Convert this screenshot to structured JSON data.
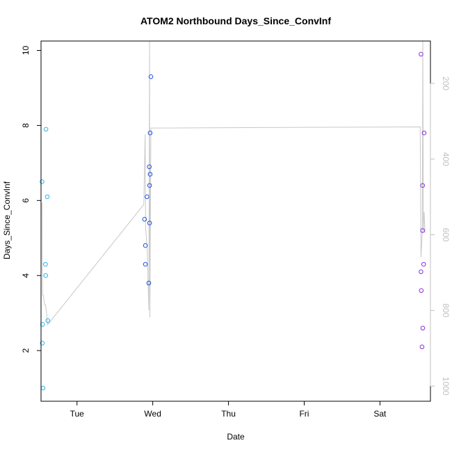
{
  "chart_data": {
    "type": "scatter",
    "title": "ATOM2 Northbound Days_Since_ConvInf",
    "xlabel": "Date",
    "ylabel": "Days_Since_ConvInf",
    "xlim": [
      "2000-01-03T12:36",
      "2000-01-08T16:00"
    ],
    "ylim": [
      0.65,
      10.25
    ],
    "y_ticks": [
      2,
      4,
      6,
      8,
      10
    ],
    "x_ticks": [
      {
        "label": "Tue",
        "value": "2000-01-04T00:00"
      },
      {
        "label": "Wed",
        "value": "2000-01-05T00:00"
      },
      {
        "label": "Thu",
        "value": "2000-01-06T00:00"
      },
      {
        "label": "Fri",
        "value": "2000-01-07T00:00"
      },
      {
        "label": "Sat",
        "value": "2000-01-08T00:00"
      }
    ],
    "y2_ticks": [
      200,
      400,
      600,
      800,
      1000
    ],
    "y2lim": [
      1040,
      88
    ],
    "y2_reversed": true,
    "grid": false,
    "series": [
      {
        "color": "#29b5e8",
        "points": [
          {
            "x": "2000-01-03T12:55",
            "y": 6.5
          },
          {
            "x": "2000-01-03T13:00",
            "y": 2.2
          },
          {
            "x": "2000-01-03T13:05",
            "y": 2.7
          },
          {
            "x": "2000-01-03T13:15",
            "y": 1.0
          },
          {
            "x": "2000-01-03T14:00",
            "y": 4.3
          },
          {
            "x": "2000-01-03T14:05",
            "y": 4.0
          },
          {
            "x": "2000-01-03T14:10",
            "y": 7.9
          },
          {
            "x": "2000-01-03T14:35",
            "y": 6.1
          },
          {
            "x": "2000-01-03T14:45",
            "y": 2.8
          }
        ]
      },
      {
        "color": "#2250e0",
        "points": [
          {
            "x": "2000-01-04T21:25",
            "y": 5.5
          },
          {
            "x": "2000-01-04T21:40",
            "y": 4.8
          },
          {
            "x": "2000-01-04T21:40",
            "y": 4.3
          },
          {
            "x": "2000-01-04T22:10",
            "y": 6.1
          },
          {
            "x": "2000-01-04T22:45",
            "y": 3.8
          },
          {
            "x": "2000-01-04T22:55",
            "y": 6.9
          },
          {
            "x": "2000-01-04T23:00",
            "y": 6.4
          },
          {
            "x": "2000-01-04T23:00",
            "y": 5.4
          },
          {
            "x": "2000-01-04T23:10",
            "y": 7.8
          },
          {
            "x": "2000-01-04T23:10",
            "y": 6.7
          },
          {
            "x": "2000-01-04T23:25",
            "y": 9.3
          }
        ]
      },
      {
        "color": "#8a2be2",
        "points": [
          {
            "x": "2000-01-08T13:00",
            "y": 9.9
          },
          {
            "x": "2000-01-08T13:00",
            "y": 4.1
          },
          {
            "x": "2000-01-08T13:05",
            "y": 3.6
          },
          {
            "x": "2000-01-08T13:20",
            "y": 2.1
          },
          {
            "x": "2000-01-08T13:30",
            "y": 6.4
          },
          {
            "x": "2000-01-08T13:30",
            "y": 5.2
          },
          {
            "x": "2000-01-08T13:35",
            "y": 2.6
          },
          {
            "x": "2000-01-08T13:50",
            "y": 4.3
          },
          {
            "x": "2000-01-08T14:00",
            "y": 7.8
          }
        ]
      }
    ],
    "secondary_line": {
      "color": "#c8c8c8",
      "points": [
        {
          "x": "2000-01-03T12:55",
          "y": 515
        },
        {
          "x": "2000-01-03T13:05",
          "y": 760
        },
        {
          "x": "2000-01-03T13:20",
          "y": 760
        },
        {
          "x": "2000-01-03T13:45",
          "y": 785
        },
        {
          "x": "2000-01-03T14:00",
          "y": 785
        },
        {
          "x": "2000-01-03T14:25",
          "y": 810
        },
        {
          "x": "2000-01-03T14:40",
          "y": 838
        },
        {
          "x": "2000-01-04T21:10",
          "y": 520
        },
        {
          "x": "2000-01-04T21:35",
          "y": 335
        },
        {
          "x": "2000-01-04T21:45",
          "y": 582
        },
        {
          "x": "2000-01-04T22:15",
          "y": 635
        },
        {
          "x": "2000-01-04T22:45",
          "y": 800
        },
        {
          "x": "2000-01-04T23:00",
          "y": 88
        },
        {
          "x": "2000-01-04T23:05",
          "y": 818
        },
        {
          "x": "2000-01-04T23:25",
          "y": 318
        },
        {
          "x": "2000-01-08T12:45",
          "y": 315
        },
        {
          "x": "2000-01-08T13:00",
          "y": 660
        },
        {
          "x": "2000-01-08T13:25",
          "y": 592
        },
        {
          "x": "2000-01-08T13:35",
          "y": 88
        },
        {
          "x": "2000-01-08T13:45",
          "y": 590
        },
        {
          "x": "2000-01-08T14:00",
          "y": 540
        },
        {
          "x": "2000-01-08T14:15",
          "y": 595
        }
      ]
    }
  }
}
